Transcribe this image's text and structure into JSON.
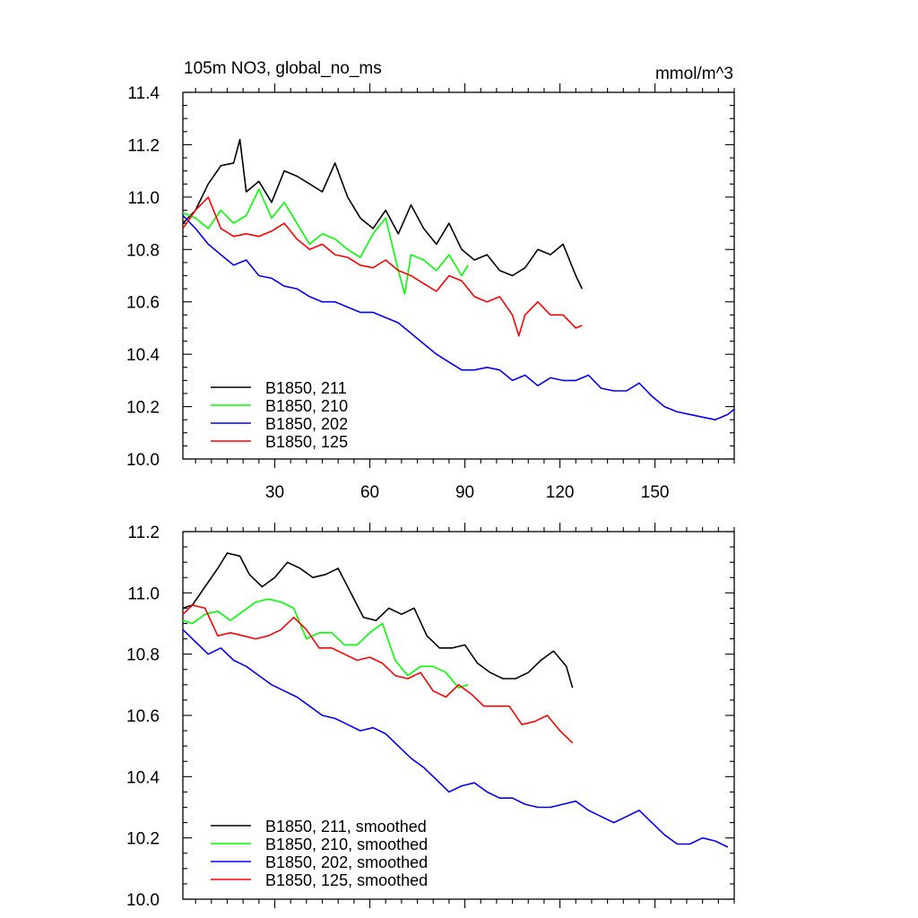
{
  "chart_data": [
    {
      "type": "line",
      "title": "105m NO3, global_no_ms",
      "units": "mmol/m^3",
      "xlim": [
        1,
        175
      ],
      "ylim": [
        10.0,
        11.4
      ],
      "xticks": [
        30,
        60,
        90,
        120,
        150
      ],
      "yticks": [
        10.0,
        10.2,
        10.4,
        10.6,
        10.8,
        11.0,
        11.2,
        11.4
      ],
      "x_tick_labels": [
        "30",
        "60",
        "90",
        "120",
        "150"
      ],
      "y_tick_labels": [
        "10.0",
        "10.2",
        "10.4",
        "10.6",
        "10.8",
        "11.0",
        "11.2",
        "11.4"
      ],
      "legend_position": "bottom-left",
      "series": [
        {
          "name": "B1850, 211",
          "color": "#000000",
          "x": [
            1,
            5,
            9,
            13,
            17,
            19,
            21,
            25,
            29,
            33,
            37,
            41,
            45,
            49,
            53,
            57,
            61,
            65,
            69,
            73,
            77,
            81,
            85,
            89,
            93,
            97,
            101,
            105,
            109,
            113,
            117,
            121,
            125,
            127
          ],
          "y": [
            10.9,
            10.95,
            11.05,
            11.12,
            11.13,
            11.22,
            11.02,
            11.06,
            10.98,
            11.1,
            11.08,
            11.05,
            11.02,
            11.13,
            11.0,
            10.92,
            10.88,
            10.95,
            10.86,
            10.97,
            10.88,
            10.82,
            10.9,
            10.8,
            10.76,
            10.78,
            10.72,
            10.7,
            10.73,
            10.8,
            10.78,
            10.82,
            10.7,
            10.65
          ]
        },
        {
          "name": "B1850, 210",
          "color": "#00ff00",
          "x": [
            1,
            5,
            9,
            13,
            17,
            21,
            25,
            29,
            33,
            37,
            41,
            45,
            49,
            53,
            57,
            61,
            65,
            69,
            71,
            73,
            77,
            81,
            85,
            89,
            91
          ],
          "y": [
            10.94,
            10.92,
            10.88,
            10.95,
            10.9,
            10.93,
            11.03,
            10.92,
            10.98,
            10.9,
            10.82,
            10.86,
            10.84,
            10.8,
            10.77,
            10.86,
            10.92,
            10.72,
            10.63,
            10.78,
            10.76,
            10.72,
            10.78,
            10.7,
            10.74
          ]
        },
        {
          "name": "B1850, 202",
          "color": "#0000ff",
          "x": [
            1,
            5,
            9,
            13,
            17,
            21,
            25,
            29,
            33,
            37,
            41,
            45,
            49,
            53,
            57,
            61,
            65,
            69,
            73,
            77,
            81,
            85,
            89,
            93,
            97,
            101,
            105,
            109,
            113,
            117,
            121,
            125,
            129,
            133,
            137,
            141,
            145,
            149,
            153,
            157,
            161,
            165,
            169,
            173,
            175
          ],
          "y": [
            10.93,
            10.88,
            10.82,
            10.78,
            10.74,
            10.76,
            10.7,
            10.69,
            10.66,
            10.65,
            10.62,
            10.6,
            10.6,
            10.58,
            10.56,
            10.56,
            10.54,
            10.52,
            10.48,
            10.44,
            10.4,
            10.37,
            10.34,
            10.34,
            10.35,
            10.34,
            10.3,
            10.32,
            10.28,
            10.31,
            10.3,
            10.3,
            10.32,
            10.27,
            10.26,
            10.26,
            10.29,
            10.24,
            10.2,
            10.18,
            10.17,
            10.16,
            10.15,
            10.17,
            10.19
          ]
        },
        {
          "name": "B1850, 125",
          "color": "#ff0000",
          "x": [
            1,
            5,
            9,
            13,
            17,
            21,
            25,
            29,
            33,
            37,
            41,
            45,
            49,
            53,
            57,
            61,
            65,
            69,
            73,
            77,
            81,
            85,
            89,
            93,
            97,
            101,
            105,
            107,
            109,
            113,
            117,
            121,
            125,
            127
          ],
          "y": [
            10.88,
            10.95,
            11.0,
            10.88,
            10.85,
            10.86,
            10.85,
            10.87,
            10.9,
            10.84,
            10.8,
            10.82,
            10.78,
            10.77,
            10.74,
            10.73,
            10.76,
            10.72,
            10.7,
            10.67,
            10.64,
            10.7,
            10.68,
            10.62,
            10.6,
            10.62,
            10.55,
            10.47,
            10.55,
            10.6,
            10.55,
            10.55,
            10.5,
            10.51
          ]
        }
      ]
    },
    {
      "type": "line",
      "xlim": [
        1,
        175
      ],
      "ylim": [
        10.0,
        11.2
      ],
      "xticks": [
        30,
        60,
        90,
        120,
        150
      ],
      "yticks": [
        10.0,
        10.2,
        10.4,
        10.6,
        10.8,
        11.0,
        11.2
      ],
      "y_tick_labels": [
        "10.0",
        "10.2",
        "10.4",
        "10.6",
        "10.8",
        "11.0",
        "11.2"
      ],
      "legend_position": "bottom-left",
      "series": [
        {
          "name": "B1850, 211, smoothed",
          "color": "#000000",
          "x": [
            1,
            4,
            8,
            12,
            15,
            19,
            22,
            26,
            30,
            34,
            38,
            42,
            46,
            50,
            54,
            58,
            62,
            66,
            70,
            74,
            78,
            82,
            86,
            90,
            94,
            98,
            102,
            106,
            110,
            114,
            118,
            122,
            124
          ],
          "y": [
            10.95,
            10.96,
            11.02,
            11.08,
            11.13,
            11.12,
            11.06,
            11.02,
            11.05,
            11.1,
            11.08,
            11.05,
            11.06,
            11.08,
            11.0,
            10.92,
            10.91,
            10.95,
            10.93,
            10.95,
            10.86,
            10.82,
            10.82,
            10.83,
            10.77,
            10.74,
            10.72,
            10.72,
            10.74,
            10.78,
            10.81,
            10.76,
            10.69
          ]
        },
        {
          "name": "B1850, 210, smoothed",
          "color": "#00ff00",
          "x": [
            1,
            4,
            8,
            12,
            16,
            20,
            24,
            28,
            32,
            36,
            40,
            44,
            48,
            52,
            56,
            60,
            64,
            68,
            72,
            76,
            80,
            84,
            88,
            91
          ],
          "y": [
            10.91,
            10.9,
            10.93,
            10.94,
            10.91,
            10.94,
            10.97,
            10.98,
            10.97,
            10.95,
            10.85,
            10.87,
            10.87,
            10.83,
            10.83,
            10.87,
            10.9,
            10.78,
            10.73,
            10.76,
            10.76,
            10.74,
            10.69,
            10.7
          ]
        },
        {
          "name": "B1850, 202, smoothed",
          "color": "#0000ff",
          "x": [
            1,
            5,
            9,
            13,
            17,
            21,
            25,
            29,
            33,
            37,
            41,
            45,
            49,
            53,
            57,
            61,
            65,
            69,
            73,
            77,
            81,
            85,
            89,
            93,
            97,
            101,
            105,
            109,
            113,
            117,
            121,
            125,
            129,
            133,
            137,
            141,
            145,
            149,
            153,
            157,
            161,
            165,
            169,
            173
          ],
          "y": [
            10.88,
            10.84,
            10.8,
            10.82,
            10.78,
            10.76,
            10.73,
            10.7,
            10.68,
            10.66,
            10.63,
            10.6,
            10.59,
            10.57,
            10.55,
            10.56,
            10.54,
            10.5,
            10.46,
            10.43,
            10.39,
            10.35,
            10.37,
            10.38,
            10.35,
            10.33,
            10.33,
            10.31,
            10.3,
            10.3,
            10.31,
            10.32,
            10.29,
            10.27,
            10.25,
            10.27,
            10.29,
            10.25,
            10.21,
            10.18,
            10.18,
            10.2,
            10.19,
            10.17
          ]
        },
        {
          "name": "B1850, 125, smoothed",
          "color": "#ff0000",
          "x": [
            1,
            4,
            8,
            12,
            16,
            20,
            24,
            28,
            32,
            36,
            40,
            44,
            48,
            52,
            56,
            60,
            64,
            68,
            72,
            76,
            80,
            84,
            88,
            92,
            96,
            100,
            104,
            108,
            112,
            116,
            120,
            124
          ],
          "y": [
            10.93,
            10.96,
            10.95,
            10.86,
            10.87,
            10.86,
            10.85,
            10.86,
            10.88,
            10.92,
            10.88,
            10.82,
            10.82,
            10.8,
            10.78,
            10.79,
            10.77,
            10.73,
            10.72,
            10.74,
            10.68,
            10.66,
            10.7,
            10.67,
            10.63,
            10.63,
            10.63,
            10.57,
            10.58,
            10.6,
            10.55,
            10.51
          ]
        }
      ]
    }
  ]
}
